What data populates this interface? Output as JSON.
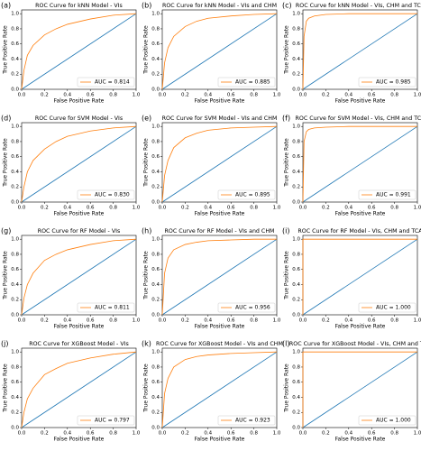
{
  "chart_data": [
    {
      "type": "line",
      "label": "(a)",
      "title": "ROC Curve for kNN Model - VIs",
      "xlabel": "False Positive Rate",
      "ylabel": "True Positive Rate",
      "xlim": [
        0,
        1
      ],
      "ylim": [
        0,
        1.05
      ],
      "xticks": [
        {
          "value": 0,
          "label": "0.0"
        },
        0.2,
        0.4,
        0.6,
        0.8,
        {
          "value": 1,
          "label": "1.0"
        }
      ],
      "yticks": [
        {
          "value": 0,
          "label": "0.0"
        },
        0.2,
        0.4,
        0.6,
        0.8,
        {
          "value": 1,
          "label": "1.0"
        }
      ],
      "legend": "lower right",
      "series": [
        {
          "name": "AUC = 0.814",
          "color": "#ff7f0e",
          "x": [
            0,
            0.02,
            0.05,
            0.1,
            0.2,
            0.3,
            0.4,
            0.6,
            0.8,
            1
          ],
          "values": [
            0,
            0.25,
            0.45,
            0.58,
            0.72,
            0.8,
            0.86,
            0.93,
            0.98,
            1
          ]
        },
        {
          "color": "#1f77b4",
          "x": [
            0,
            1
          ],
          "values": [
            0,
            1
          ]
        }
      ]
    },
    {
      "type": "line",
      "label": "(b)",
      "title": "ROC Curve for kNN Model - VIs and CHM",
      "xlabel": "False Positive Rate",
      "ylabel": "True Positive Rate",
      "xlim": [
        0,
        1
      ],
      "ylim": [
        0,
        1.05
      ],
      "xticks": [
        {
          "value": 0,
          "label": "0.0"
        },
        0.2,
        0.4,
        0.6,
        0.8,
        {
          "value": 1,
          "label": "1.0"
        }
      ],
      "yticks": [
        {
          "value": 0,
          "label": "0.0"
        },
        0.2,
        0.4,
        0.6,
        0.8,
        {
          "value": 1,
          "label": "1.0"
        }
      ],
      "legend": "lower right",
      "series": [
        {
          "name": "AUC = 0.885",
          "color": "#ff7f0e",
          "x": [
            0,
            0.02,
            0.05,
            0.1,
            0.2,
            0.3,
            0.4,
            0.6,
            0.8,
            1
          ],
          "values": [
            0,
            0.35,
            0.55,
            0.7,
            0.83,
            0.9,
            0.94,
            0.97,
            0.99,
            1
          ]
        },
        {
          "color": "#1f77b4",
          "x": [
            0,
            1
          ],
          "values": [
            0,
            1
          ]
        }
      ]
    },
    {
      "type": "line",
      "label": "(c)",
      "title": "ROC Curve for kNN Model - VIs, CHM and TCA",
      "xlabel": "False Positive Rate",
      "ylabel": "True Positive Rate",
      "xlim": [
        0,
        1
      ],
      "ylim": [
        0,
        1.05
      ],
      "xticks": [
        {
          "value": 0,
          "label": "0.0"
        },
        0.2,
        0.4,
        0.6,
        0.8,
        {
          "value": 1,
          "label": "1.0"
        }
      ],
      "yticks": [
        {
          "value": 0,
          "label": "0.0"
        },
        0.2,
        0.4,
        0.6,
        0.8,
        {
          "value": 1,
          "label": "1.0"
        }
      ],
      "legend": "lower right",
      "series": [
        {
          "name": "AUC = 0.985",
          "color": "#ff7f0e",
          "x": [
            0,
            0.01,
            0.03,
            0.05,
            0.1,
            0.2,
            0.4,
            1
          ],
          "values": [
            0,
            0.7,
            0.9,
            0.94,
            0.97,
            0.99,
            1,
            1
          ]
        },
        {
          "color": "#1f77b4",
          "x": [
            0,
            1
          ],
          "values": [
            0,
            1
          ]
        }
      ]
    },
    {
      "type": "line",
      "label": "(d)",
      "title": "ROC Curve for SVM Model - VIs",
      "xlabel": "False Positive Rate",
      "ylabel": "True Positive Rate",
      "xlim": [
        0,
        1
      ],
      "ylim": [
        0,
        1.05
      ],
      "xticks": [
        {
          "value": 0,
          "label": "0.0"
        },
        0.2,
        0.4,
        0.6,
        0.8,
        {
          "value": 1,
          "label": "1.0"
        }
      ],
      "yticks": [
        {
          "value": 0,
          "label": "0.0"
        },
        0.2,
        0.4,
        0.6,
        0.8,
        {
          "value": 1,
          "label": "1.0"
        }
      ],
      "legend": "lower right",
      "series": [
        {
          "name": "AUC = 0.830",
          "color": "#ff7f0e",
          "x": [
            0,
            0.02,
            0.05,
            0.1,
            0.2,
            0.3,
            0.4,
            0.6,
            0.8,
            1
          ],
          "values": [
            0,
            0.2,
            0.4,
            0.55,
            0.7,
            0.8,
            0.87,
            0.94,
            0.98,
            1
          ]
        },
        {
          "color": "#1f77b4",
          "x": [
            0,
            1
          ],
          "values": [
            0,
            1
          ]
        }
      ]
    },
    {
      "type": "line",
      "label": "(e)",
      "title": "ROC Curve for SVM Model - VIs and CHM",
      "xlabel": "False Positive Rate",
      "ylabel": "True Positive Rate",
      "xlim": [
        0,
        1
      ],
      "ylim": [
        0,
        1.05
      ],
      "xticks": [
        {
          "value": 0,
          "label": "0.0"
        },
        0.2,
        0.4,
        0.6,
        0.8,
        {
          "value": 1,
          "label": "1.0"
        }
      ],
      "yticks": [
        {
          "value": 0,
          "label": "0.0"
        },
        0.2,
        0.4,
        0.6,
        0.8,
        {
          "value": 1,
          "label": "1.0"
        }
      ],
      "legend": "lower right",
      "series": [
        {
          "name": "AUC = 0.895",
          "color": "#ff7f0e",
          "x": [
            0,
            0.02,
            0.05,
            0.1,
            0.2,
            0.3,
            0.4,
            0.6,
            0.8,
            1
          ],
          "values": [
            0,
            0.35,
            0.55,
            0.72,
            0.85,
            0.91,
            0.95,
            0.98,
            0.99,
            1
          ]
        },
        {
          "color": "#1f77b4",
          "x": [
            0,
            1
          ],
          "values": [
            0,
            1
          ]
        }
      ]
    },
    {
      "type": "line",
      "label": "(f)",
      "title": "ROC Curve for SVM Model - VIs, CHM and TCA",
      "xlabel": "False Positive Rate",
      "ylabel": "True Positive Rate",
      "xlim": [
        0,
        1
      ],
      "ylim": [
        0,
        1.05
      ],
      "xticks": [
        {
          "value": 0,
          "label": "0.0"
        },
        0.2,
        0.4,
        0.6,
        0.8,
        {
          "value": 1,
          "label": "1.0"
        }
      ],
      "yticks": [
        {
          "value": 0,
          "label": "0.0"
        },
        0.2,
        0.4,
        0.6,
        0.8,
        {
          "value": 1,
          "label": "1.0"
        }
      ],
      "legend": "lower right",
      "series": [
        {
          "name": "AUC = 0.991",
          "color": "#ff7f0e",
          "x": [
            0,
            0.01,
            0.03,
            0.05,
            0.1,
            0.2,
            0.4,
            1
          ],
          "values": [
            0,
            0.8,
            0.93,
            0.96,
            0.98,
            0.99,
            1,
            1
          ]
        },
        {
          "color": "#1f77b4",
          "x": [
            0,
            1
          ],
          "values": [
            0,
            1
          ]
        }
      ]
    },
    {
      "type": "line",
      "label": "(g)",
      "title": "ROC Curve for RF Model - VIs",
      "xlabel": "False Positive Rate",
      "ylabel": "True Positive Rate",
      "xlim": [
        0,
        1
      ],
      "ylim": [
        0,
        1.05
      ],
      "xticks": [
        {
          "value": 0,
          "label": "0.0"
        },
        0.2,
        0.4,
        0.6,
        0.8,
        {
          "value": 1,
          "label": "1.0"
        }
      ],
      "yticks": [
        {
          "value": 0,
          "label": "0.0"
        },
        0.2,
        0.4,
        0.6,
        0.8,
        {
          "value": 1,
          "label": "1.0"
        }
      ],
      "legend": "lower right",
      "series": [
        {
          "name": "AUC = 0.811",
          "color": "#ff7f0e",
          "x": [
            0,
            0.02,
            0.05,
            0.1,
            0.2,
            0.3,
            0.4,
            0.6,
            0.8,
            1
          ],
          "values": [
            0,
            0.22,
            0.4,
            0.55,
            0.72,
            0.8,
            0.86,
            0.93,
            0.98,
            1
          ]
        },
        {
          "color": "#1f77b4",
          "x": [
            0,
            1
          ],
          "values": [
            0,
            1
          ]
        }
      ]
    },
    {
      "type": "line",
      "label": "(h)",
      "title": "ROC Curve for RF Model - VIs and CHM",
      "xlabel": "False Positive Rate",
      "ylabel": "True Positive Rate",
      "xlim": [
        0,
        1
      ],
      "ylim": [
        0,
        1.05
      ],
      "xticks": [
        {
          "value": 0,
          "label": "0.0"
        },
        0.2,
        0.4,
        0.6,
        0.8,
        {
          "value": 1,
          "label": "1.0"
        }
      ],
      "yticks": [
        {
          "value": 0,
          "label": "0.0"
        },
        0.2,
        0.4,
        0.6,
        0.8,
        {
          "value": 1,
          "label": "1.0"
        }
      ],
      "legend": "lower right",
      "series": [
        {
          "name": "AUC = 0.956",
          "color": "#ff7f0e",
          "x": [
            0,
            0.02,
            0.05,
            0.1,
            0.2,
            0.3,
            0.4,
            0.6,
            0.8,
            1
          ],
          "values": [
            0,
            0.55,
            0.75,
            0.86,
            0.93,
            0.96,
            0.98,
            0.99,
            1,
            1
          ]
        },
        {
          "color": "#1f77b4",
          "x": [
            0,
            1
          ],
          "values": [
            0,
            1
          ]
        }
      ]
    },
    {
      "type": "line",
      "label": "(i)",
      "title": "ROC Curve for RF Model - VIs, CHM and TCA",
      "xlabel": "False Positive Rate",
      "ylabel": "True Positive Rate",
      "xlim": [
        0,
        1
      ],
      "ylim": [
        0,
        1.05
      ],
      "xticks": [
        {
          "value": 0,
          "label": "0.0"
        },
        0.2,
        0.4,
        0.6,
        0.8,
        {
          "value": 1,
          "label": "1.0"
        }
      ],
      "yticks": [
        {
          "value": 0,
          "label": "0.0"
        },
        0.2,
        0.4,
        0.6,
        0.8,
        {
          "value": 1,
          "label": "1.0"
        }
      ],
      "legend": "lower right",
      "series": [
        {
          "name": "AUC = 1.000",
          "color": "#ff7f0e",
          "x": [
            0,
            0,
            1
          ],
          "values": [
            0,
            1,
            1
          ]
        },
        {
          "color": "#1f77b4",
          "x": [
            0,
            1
          ],
          "values": [
            0,
            1
          ]
        }
      ]
    },
    {
      "type": "line",
      "label": "(j)",
      "title": "ROC Curve for XGBoost Model - VIs",
      "xlabel": "False Positive Rate",
      "ylabel": "True Positive Rate",
      "xlim": [
        0,
        1
      ],
      "ylim": [
        0,
        1.05
      ],
      "xticks": [
        {
          "value": 0,
          "label": "0.0"
        },
        0.2,
        0.4,
        0.6,
        0.8,
        {
          "value": 1,
          "label": "1.0"
        }
      ],
      "yticks": [
        {
          "value": 0,
          "label": "0.0"
        },
        0.2,
        0.4,
        0.6,
        0.8,
        {
          "value": 1,
          "label": "1.0"
        }
      ],
      "legend": "lower right",
      "series": [
        {
          "name": "AUC = 0.797",
          "color": "#ff7f0e",
          "x": [
            0,
            0.02,
            0.05,
            0.1,
            0.2,
            0.3,
            0.4,
            0.6,
            0.8,
            1
          ],
          "values": [
            0,
            0.2,
            0.38,
            0.52,
            0.7,
            0.78,
            0.85,
            0.92,
            0.97,
            1
          ]
        },
        {
          "color": "#1f77b4",
          "x": [
            0,
            1
          ],
          "values": [
            0,
            1
          ]
        }
      ]
    },
    {
      "type": "line",
      "label": "(k)",
      "title": "ROC Curve for XGBoost Model - VIs and CHM",
      "xlabel": "False Positive Rate",
      "ylabel": "True Positive Rate",
      "xlim": [
        0,
        1
      ],
      "ylim": [
        0,
        1.05
      ],
      "xticks": [
        {
          "value": 0,
          "label": "0.0"
        },
        0.2,
        0.4,
        0.6,
        0.8,
        {
          "value": 1,
          "label": "1.0"
        }
      ],
      "yticks": [
        {
          "value": 0,
          "label": "0.0"
        },
        0.2,
        0.4,
        0.6,
        0.8,
        {
          "value": 1,
          "label": "1.0"
        }
      ],
      "legend": "lower right",
      "series": [
        {
          "name": "AUC = 0.923",
          "color": "#ff7f0e",
          "x": [
            0,
            0.02,
            0.05,
            0.1,
            0.2,
            0.3,
            0.4,
            0.6,
            0.8,
            1
          ],
          "values": [
            0,
            0.45,
            0.65,
            0.8,
            0.9,
            0.94,
            0.96,
            0.98,
            0.99,
            1
          ]
        },
        {
          "color": "#1f77b4",
          "x": [
            0,
            1
          ],
          "values": [
            0,
            1
          ]
        }
      ]
    },
    {
      "type": "line",
      "label": "(l)",
      "title": "ROC Curve for XGBoost Model - VIs, CHM and TCA",
      "xlabel": "False Positive Rate",
      "ylabel": "True Positive Rate",
      "xlim": [
        0,
        1
      ],
      "ylim": [
        0,
        1.05
      ],
      "xticks": [
        {
          "value": 0,
          "label": "0.0"
        },
        0.2,
        0.4,
        0.6,
        0.8,
        {
          "value": 1,
          "label": "1.0"
        }
      ],
      "yticks": [
        {
          "value": 0,
          "label": "0.0"
        },
        0.2,
        0.4,
        0.6,
        0.8,
        {
          "value": 1,
          "label": "1.0"
        }
      ],
      "legend": "lower right",
      "series": [
        {
          "name": "AUC = 1.000",
          "color": "#ff7f0e",
          "x": [
            0,
            0,
            1
          ],
          "values": [
            0,
            1,
            1
          ]
        },
        {
          "color": "#1f77b4",
          "x": [
            0,
            1
          ],
          "values": [
            0,
            1
          ]
        }
      ]
    }
  ]
}
